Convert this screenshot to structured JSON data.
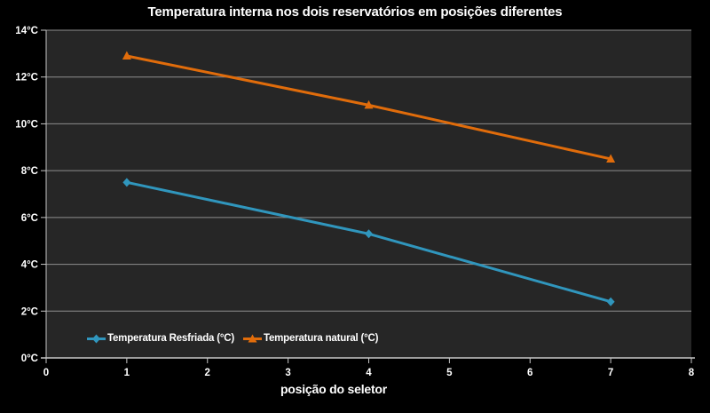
{
  "chart_data": {
    "type": "line",
    "title": "Temperatura interna nos dois reservatórios em posições diferentes",
    "xlabel": "posição do seletor",
    "ylabel": "",
    "x": [
      1,
      4,
      7
    ],
    "series": [
      {
        "name": "Temperatura Resfriada (°C)",
        "values": [
          7.5,
          5.3,
          2.4
        ],
        "color": "#3096BD",
        "marker": "diamond"
      },
      {
        "name": "Temperatura natural (°C)",
        "values": [
          12.9,
          10.8,
          8.5
        ],
        "color": "#E06C0B",
        "marker": "triangle"
      }
    ],
    "xlim": [
      0,
      8
    ],
    "ylim": [
      0,
      14
    ],
    "x_ticks": [
      0,
      1,
      2,
      3,
      4,
      5,
      6,
      7,
      8
    ],
    "y_ticks": [
      0,
      2,
      4,
      6,
      8,
      10,
      12,
      14
    ],
    "y_tick_labels": [
      "0°C",
      "2°C",
      "4°C",
      "6°C",
      "8°C",
      "10°C",
      "12°C",
      "14°C"
    ],
    "grid": true,
    "legend_position": "inside-bottom-left",
    "colors": {
      "background": "#000000",
      "plot_background": "#262626",
      "gridline": "#8E8E8E",
      "axis": "#C6C6C6",
      "text": "#FFFFFF"
    }
  }
}
